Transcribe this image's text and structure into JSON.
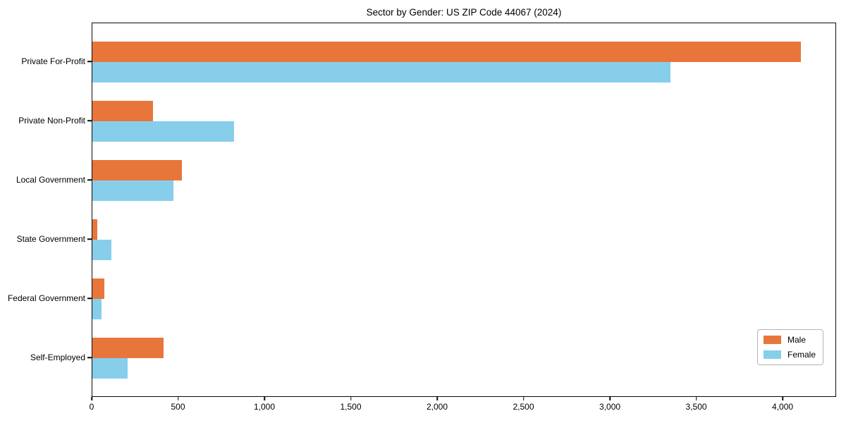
{
  "chart_data": {
    "type": "bar",
    "orientation": "horizontal",
    "title": "Sector by Gender: US ZIP Code 44067 (2024)",
    "categories": [
      "Private For-Profit",
      "Private Non-Profit",
      "Local Government",
      "State Government",
      "Federal Government",
      "Self-Employed"
    ],
    "series": [
      {
        "name": "Male",
        "color": "#e8763b",
        "values": [
          4110,
          350,
          520,
          28,
          70,
          415
        ]
      },
      {
        "name": "Female",
        "color": "#87ceeb",
        "values": [
          3355,
          820,
          470,
          110,
          55,
          205
        ]
      }
    ],
    "xlabel": "",
    "ylabel": "",
    "xlim": [
      0,
      4310
    ],
    "xticks": [
      0,
      500,
      1000,
      1500,
      2000,
      2500,
      3000,
      3500,
      4000
    ],
    "xtick_labels": [
      "0",
      "500",
      "1,000",
      "1,500",
      "2,000",
      "2,500",
      "3,000",
      "3,500",
      "4,000"
    ],
    "grid": false,
    "legend": {
      "position": "lower right",
      "entries": [
        "Male",
        "Female"
      ]
    },
    "colors": {
      "background": "#ffffff",
      "axis": "#0a0a0a",
      "legend_border": "#b3b3b3"
    }
  }
}
